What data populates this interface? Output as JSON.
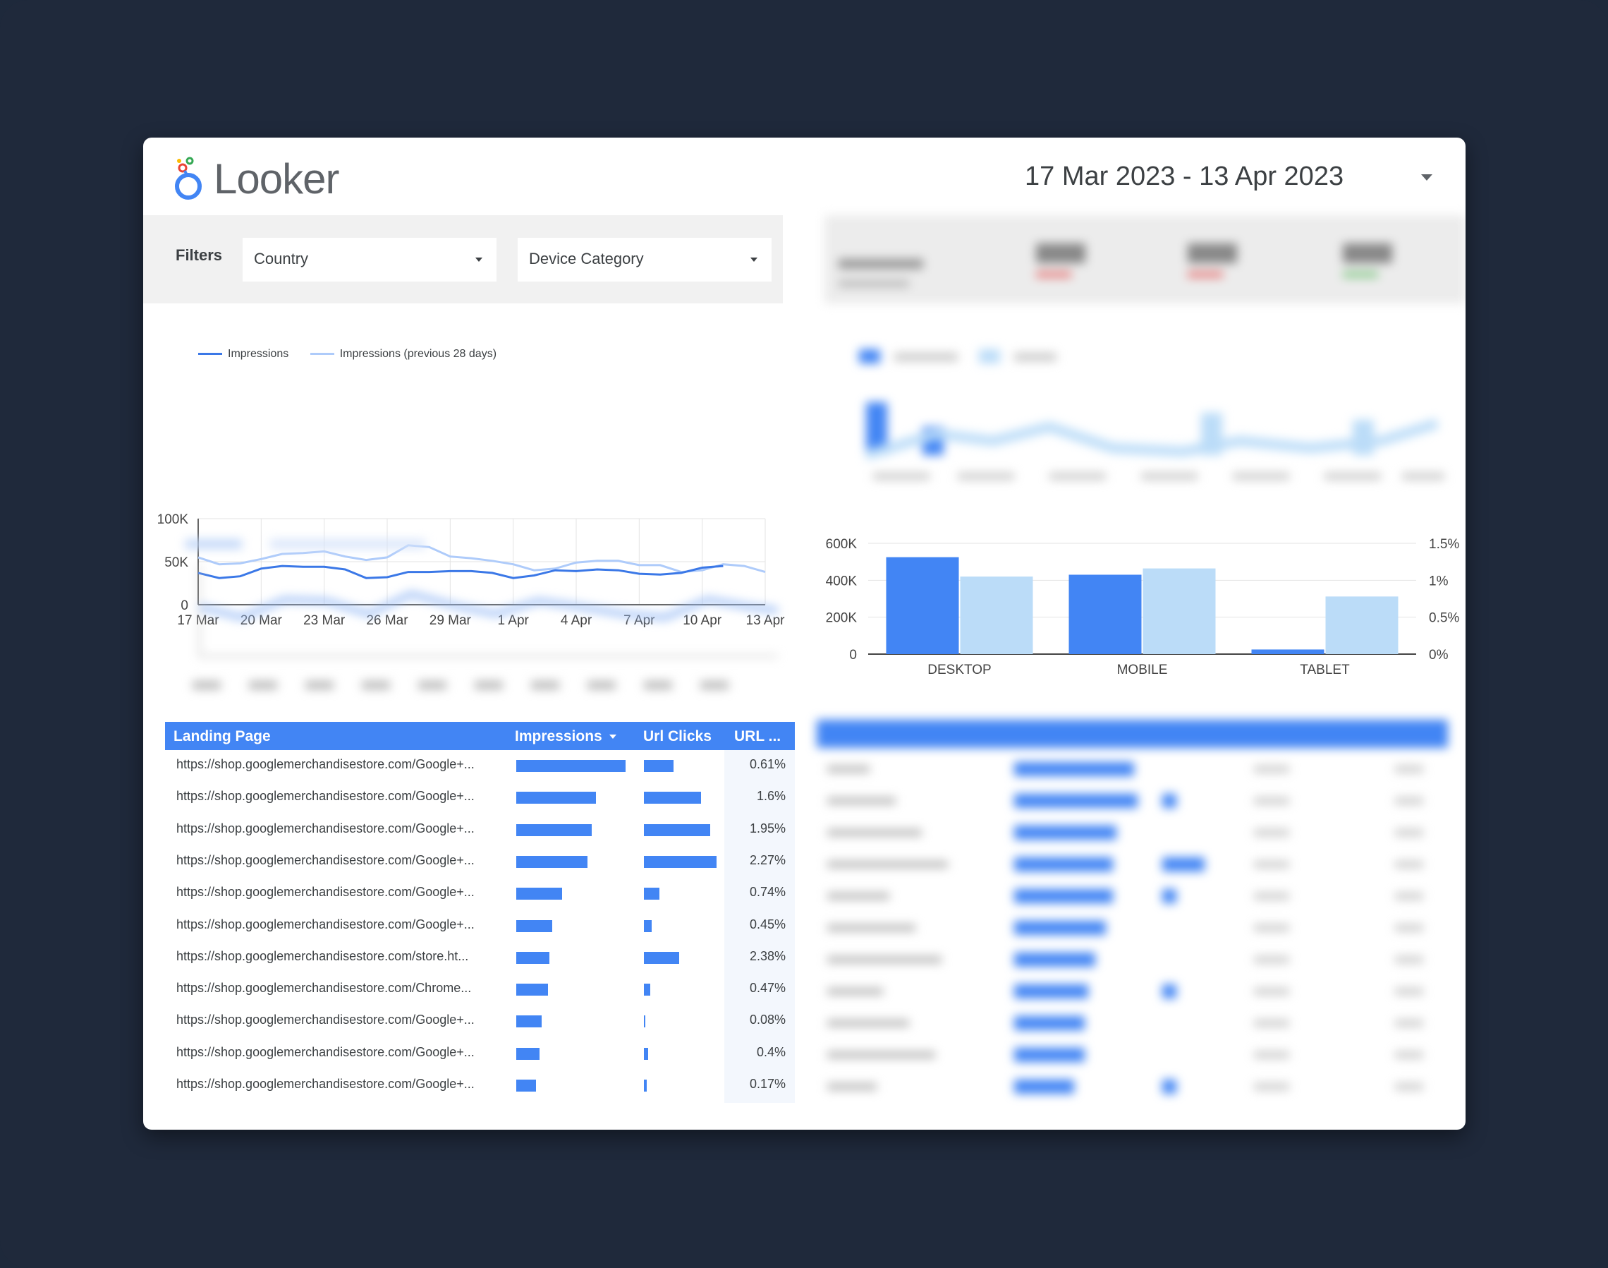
{
  "header": {
    "logo_text": "Looker",
    "date_range": "17 Mar 2023 - 13 Apr 2023"
  },
  "filters": {
    "label": "Filters",
    "country": "Country",
    "device_category": "Device Category"
  },
  "line_chart": {
    "legend": [
      "Impressions",
      "Impressions (previous 28 days)"
    ],
    "colors": {
      "current": "#3b78e7",
      "previous": "#aecbfa"
    }
  },
  "bar_chart_colors": {
    "primary": "#4285f4",
    "secondary": "#bbdcf8"
  },
  "table": {
    "headers": {
      "landing_page": "Landing Page",
      "impressions": "Impressions",
      "url_clicks": "Url Clicks",
      "url_ctr": "URL ..."
    },
    "rows": [
      {
        "url": "https://shop.googlemerchandisestore.com/Google+...",
        "impressions": 1.0,
        "clicks": 0.41,
        "ctr": "0.61%"
      },
      {
        "url": "https://shop.googlemerchandisestore.com/Google+...",
        "impressions": 0.73,
        "clicks": 0.79,
        "ctr": "1.6%"
      },
      {
        "url": "https://shop.googlemerchandisestore.com/Google+...",
        "impressions": 0.69,
        "clicks": 0.91,
        "ctr": "1.95%"
      },
      {
        "url": "https://shop.googlemerchandisestore.com/Google+...",
        "impressions": 0.65,
        "clicks": 1.0,
        "ctr": "2.27%"
      },
      {
        "url": "https://shop.googlemerchandisestore.com/Google+...",
        "impressions": 0.42,
        "clicks": 0.21,
        "ctr": "0.74%"
      },
      {
        "url": "https://shop.googlemerchandisestore.com/Google+...",
        "impressions": 0.33,
        "clicks": 0.11,
        "ctr": "0.45%"
      },
      {
        "url": "https://shop.googlemerchandisestore.com/store.ht...",
        "impressions": 0.3,
        "clicks": 0.49,
        "ctr": "2.38%"
      },
      {
        "url": "https://shop.googlemerchandisestore.com/Chrome...",
        "impressions": 0.29,
        "clicks": 0.09,
        "ctr": "0.47%"
      },
      {
        "url": "https://shop.googlemerchandisestore.com/Google+...",
        "impressions": 0.23,
        "clicks": 0.02,
        "ctr": "0.08%"
      },
      {
        "url": "https://shop.googlemerchandisestore.com/Google+...",
        "impressions": 0.21,
        "clicks": 0.06,
        "ctr": "0.4%"
      },
      {
        "url": "https://shop.googlemerchandisestore.com/Google+...",
        "impressions": 0.18,
        "clicks": 0.04,
        "ctr": "0.17%"
      }
    ]
  },
  "chart_data": [
    {
      "type": "line",
      "x": [
        "17 Mar",
        "18 Mar",
        "19 Mar",
        "20 Mar",
        "21 Mar",
        "22 Mar",
        "23 Mar",
        "24 Mar",
        "25 Mar",
        "26 Mar",
        "27 Mar",
        "28 Mar",
        "29 Mar",
        "30 Mar",
        "31 Mar",
        "1 Apr",
        "2 Apr",
        "3 Apr",
        "4 Apr",
        "5 Apr",
        "6 Apr",
        "7 Apr",
        "8 Apr",
        "9 Apr",
        "10 Apr",
        "11 Apr",
        "12 Apr",
        "13 Apr"
      ],
      "xticks": [
        "17 Mar",
        "20 Mar",
        "23 Mar",
        "26 Mar",
        "29 Mar",
        "1 Apr",
        "4 Apr",
        "7 Apr",
        "10 Apr",
        "13 Apr"
      ],
      "yticks": [
        "0",
        "50K",
        "100K"
      ],
      "ylim": [
        0,
        100000
      ],
      "series": [
        {
          "name": "Impressions",
          "values": [
            37000,
            31000,
            33000,
            42000,
            45000,
            44000,
            44000,
            41000,
            31000,
            32000,
            38000,
            38000,
            39000,
            39000,
            37000,
            31000,
            34000,
            40000,
            39000,
            41000,
            40000,
            36000,
            35000,
            37000,
            43000,
            45000,
            null,
            null
          ]
        },
        {
          "name": "Impressions (previous 28 days)",
          "values": [
            55000,
            47000,
            48000,
            53000,
            59000,
            60000,
            62000,
            56000,
            52000,
            55000,
            69000,
            67000,
            56000,
            54000,
            51000,
            47000,
            40000,
            42000,
            49000,
            51000,
            51000,
            46000,
            46000,
            38000,
            40000,
            47000,
            45000,
            38000
          ]
        }
      ]
    },
    {
      "type": "bar",
      "categories": [
        "DESKTOP",
        "MOBILE",
        "TABLET"
      ],
      "yticks_left": [
        "0",
        "200K",
        "400K",
        "600K"
      ],
      "yticks_right": [
        "0%",
        "0.5%",
        "1%",
        "1.5%"
      ],
      "ylim_left": [
        0,
        600000
      ],
      "ylim_right": [
        0,
        1.5
      ],
      "series": [
        {
          "values": [
            525000,
            430000,
            25000
          ],
          "axis": "left"
        },
        {
          "values": [
            1.05,
            1.16,
            0.78
          ],
          "axis": "right"
        }
      ]
    }
  ]
}
